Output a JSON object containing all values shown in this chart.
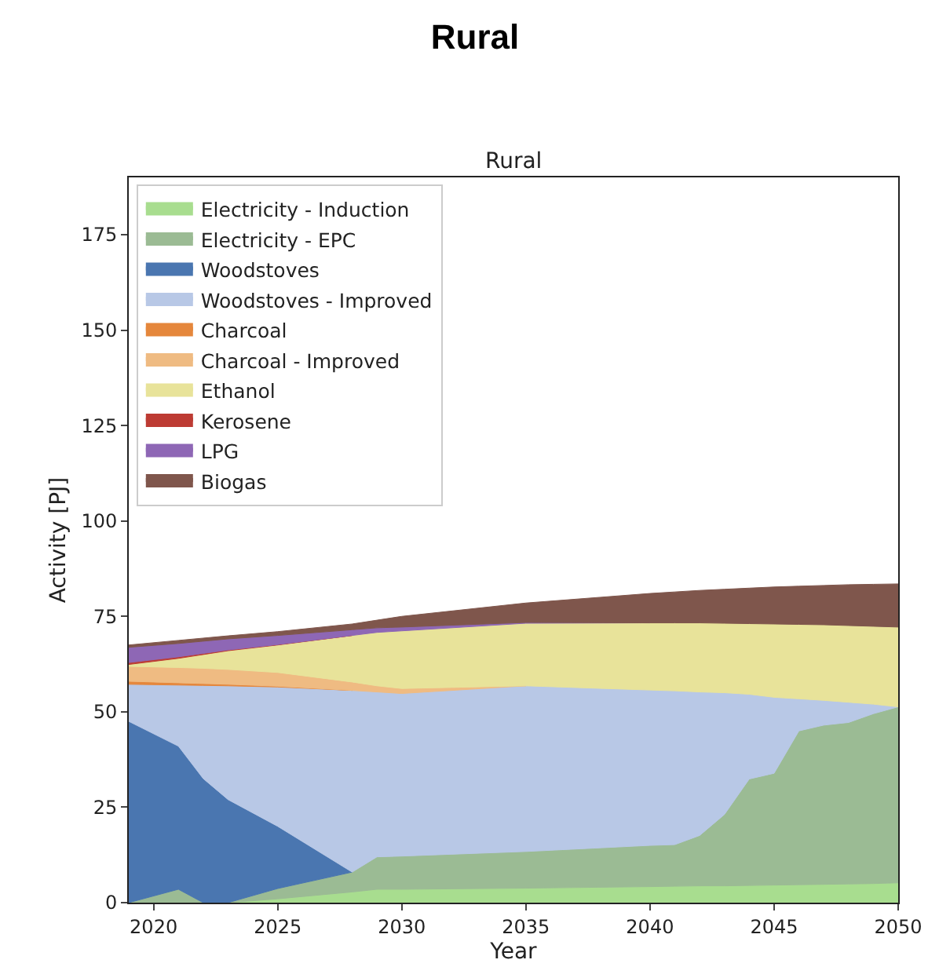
{
  "chart_data": {
    "type": "area",
    "stacked": true,
    "title": "Rural",
    "subtitle": "Rural",
    "xlabel": "Year",
    "ylabel": "Activity [PJ]",
    "x": [
      2019,
      2021,
      2022,
      2023,
      2025,
      2028,
      2029,
      2030,
      2035,
      2040,
      2041,
      2042,
      2043,
      2044,
      2045,
      2046,
      2047,
      2048,
      2049,
      2050
    ],
    "xlim": [
      2019,
      2050
    ],
    "xticks": [
      2020,
      2025,
      2030,
      2035,
      2040,
      2045,
      2050
    ],
    "ylim": [
      0,
      190
    ],
    "yticks": [
      0,
      25,
      50,
      75,
      100,
      125,
      150,
      175
    ],
    "legend": "top left",
    "series": [
      {
        "name": "Electricity - Induction",
        "color": "#a8dd8f",
        "values": [
          null,
          null,
          null,
          0,
          1,
          2.8,
          3.5,
          3.5,
          3.8,
          4.2,
          4.3,
          4.4,
          4.4,
          4.5,
          4.6,
          4.7,
          4.8,
          4.9,
          5,
          5.2
        ]
      },
      {
        "name": "Electricity - EPC",
        "color": "#9bbb94",
        "values": [
          0,
          3.5,
          0,
          0,
          2.7,
          5.2,
          8.5,
          8.7,
          9.6,
          10.8,
          10.9,
          13.2,
          18.7,
          27.9,
          29.3,
          40.3,
          41.7,
          42.3,
          44.5,
          46.1
        ]
      },
      {
        "name": "Woodstoves",
        "color": "#4a76b0",
        "values": [
          47.5,
          37.5,
          32.5,
          27,
          16.3,
          0,
          null,
          null,
          null,
          null,
          null,
          null,
          null,
          null,
          null,
          null,
          null,
          null,
          null,
          null
        ]
      },
      {
        "name": "Woodstoves - Improved",
        "color": "#b8c8e6",
        "values": [
          9.7,
          16,
          24.4,
          29.8,
          36.5,
          47.6,
          43.2,
          42.6,
          43.4,
          40.7,
          40.3,
          37.6,
          31.9,
          22.2,
          19.9,
          8.4,
          6.5,
          5.3,
          2.5,
          0
        ]
      },
      {
        "name": "Charcoal",
        "color": "#e5873c",
        "values": [
          0.8,
          0.6,
          0.5,
          0.4,
          0.2,
          0,
          null,
          null,
          null,
          null,
          null,
          null,
          null,
          null,
          null,
          null,
          null,
          null,
          null,
          null
        ]
      },
      {
        "name": "Charcoal - Improved",
        "color": "#efbb82",
        "values": [
          3.9,
          4,
          4,
          3.9,
          3.6,
          2.2,
          1.6,
          1.3,
          0,
          null,
          null,
          null,
          null,
          null,
          null,
          null,
          null,
          null,
          null,
          null
        ]
      },
      {
        "name": "Ethanol",
        "color": "#e8e39a",
        "values": [
          0.5,
          2.4,
          3.6,
          4.9,
          7.2,
          12.2,
          14,
          15.1,
          16.4,
          17.6,
          17.8,
          18.1,
          18.2,
          18.5,
          19.2,
          19.5,
          19.8,
          20.1,
          20.4,
          20.9
        ]
      },
      {
        "name": "Kerosene",
        "color": "#bd3b33",
        "values": [
          0.5,
          0.4,
          0.3,
          0.2,
          0.1,
          0,
          null,
          null,
          null,
          null,
          null,
          null,
          null,
          null,
          null,
          null,
          null,
          null,
          null,
          null
        ]
      },
      {
        "name": "LPG",
        "color": "#8e67b5",
        "values": [
          4,
          3.5,
          3.2,
          2.9,
          2.4,
          1.5,
          1.2,
          1,
          0.2,
          0,
          null,
          null,
          null,
          null,
          null,
          null,
          null,
          null,
          null,
          null
        ]
      },
      {
        "name": "Biogas",
        "color": "#7f564c",
        "values": [
          0.6,
          0.8,
          0.8,
          0.8,
          1,
          1.5,
          2,
          2.8,
          5.1,
          7.7,
          8.1,
          8.5,
          8.9,
          9.3,
          9.7,
          10,
          10.3,
          10.7,
          11,
          11.3
        ]
      }
    ]
  }
}
